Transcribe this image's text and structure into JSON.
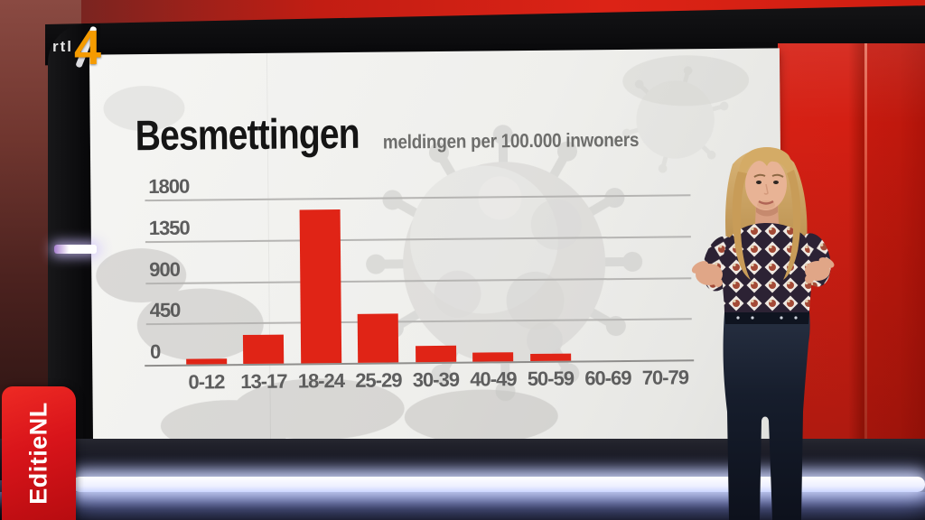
{
  "branding": {
    "channel": "RTL 4",
    "logo_text": "rtl",
    "logo_number": "4",
    "program_badge": "EditieNL"
  },
  "chart_data": {
    "type": "bar",
    "title": "Besmettingen",
    "subtitle": "meldingen per 100.000 inwoners",
    "categories": [
      "0-12",
      "13-17",
      "18-24",
      "25-29",
      "30-39",
      "40-49",
      "50-59",
      "60-69",
      "70-79"
    ],
    "values": [
      60,
      310,
      1670,
      530,
      180,
      100,
      80,
      0,
      0
    ],
    "xlabel": "",
    "ylabel": "",
    "ylim": [
      0,
      1800
    ],
    "yticks": [
      0,
      450,
      900,
      1350,
      1800
    ],
    "grid": true,
    "legend": false,
    "bar_color": "#e02416"
  },
  "scene_colors": {
    "studio_red": "#d51e13",
    "badge_red": "#d8141a",
    "logo_orange": "#f59b00",
    "panel_background": "#efefec",
    "bar_red": "#e02416",
    "led_glow_blue": "#cdd6ff",
    "title_black": "#151515",
    "axis_gray": "#5e5e5e"
  }
}
